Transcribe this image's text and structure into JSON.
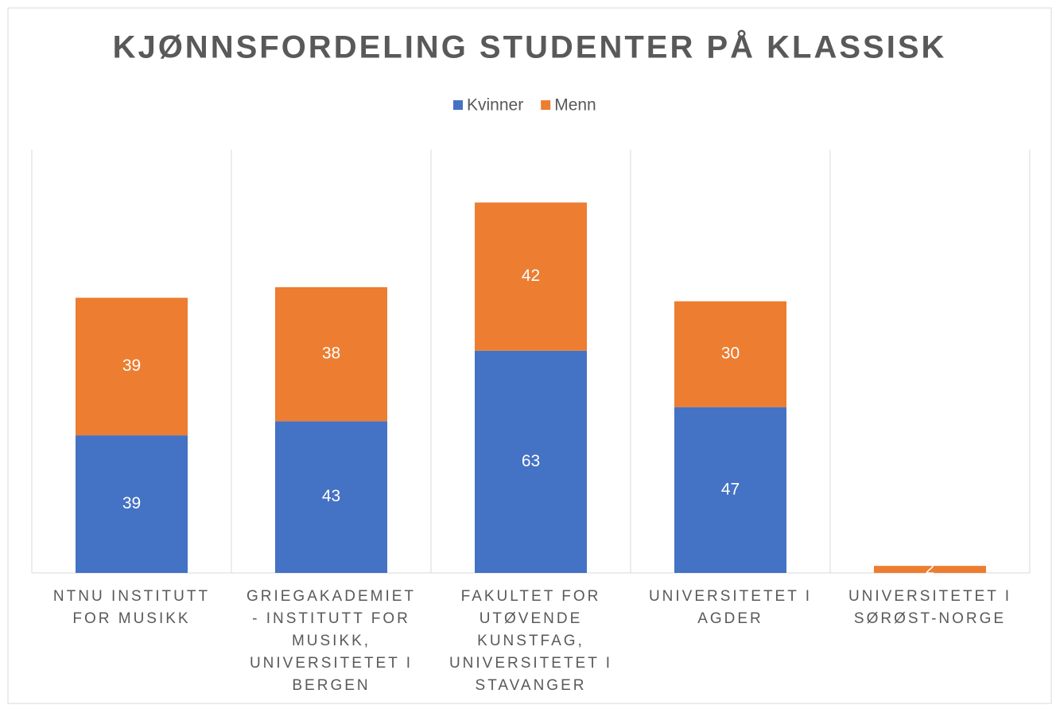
{
  "chart_data": {
    "type": "stacked_bar",
    "title": "KJØNNSFORDELING STUDENTER PÅ KLASSISK",
    "categories": [
      "NTNU INSTITUTT FOR MUSIKK",
      "GRIEGAKADEMIET - INSTITUTT FOR MUSIKK, UNIVERSITETET I BERGEN",
      "FAKULTET FOR UTØVENDE KUNSTFAG, UNIVERSITETET I STAVANGER",
      "UNIVERSITETET I AGDER",
      "UNIVERSITETET I SØRØST-NORGE"
    ],
    "series": [
      {
        "name": "Kvinner",
        "color": "#4472c4",
        "values": [
          39,
          43,
          63,
          47,
          0
        ]
      },
      {
        "name": "Menn",
        "color": "#ed7d31",
        "values": [
          39,
          38,
          42,
          30,
          2
        ]
      }
    ],
    "ylim": [
      0,
      120
    ],
    "legend": "top"
  }
}
